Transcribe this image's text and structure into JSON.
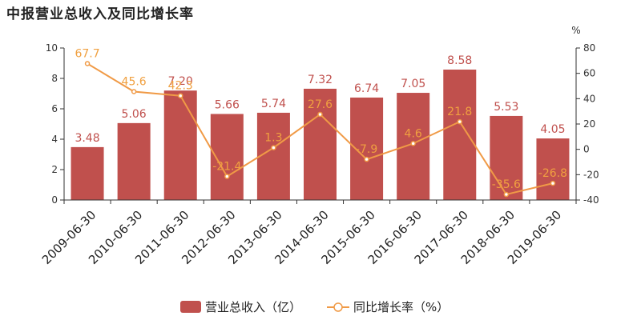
{
  "title": "中报营业总收入及同比增长率",
  "colors": {
    "bar": "#c0504d",
    "line": "#f09a46"
  },
  "chart_data": {
    "type": "bar",
    "categories": [
      "2009-06-30",
      "2010-06-30",
      "2011-06-30",
      "2012-06-30",
      "2013-06-30",
      "2014-06-30",
      "2015-06-30",
      "2016-06-30",
      "2017-06-30",
      "2018-06-30",
      "2019-06-30"
    ],
    "series": [
      {
        "name": "营业总收入（亿）",
        "type": "bar",
        "axis": "left",
        "values": [
          3.48,
          5.06,
          7.2,
          5.66,
          5.74,
          7.32,
          6.74,
          7.05,
          8.58,
          5.53,
          4.05
        ],
        "labels": [
          "3.48",
          "5.06",
          "7.20",
          "5.66",
          "5.74",
          "7.32",
          "6.74",
          "7.05",
          "8.58",
          "5.53",
          "4.05"
        ]
      },
      {
        "name": "同比增长率（%）",
        "type": "line",
        "axis": "right",
        "values": [
          67.7,
          45.6,
          42.3,
          -21.4,
          1.3,
          27.6,
          -7.9,
          4.6,
          21.8,
          -35.6,
          -26.8
        ],
        "labels": [
          "67.7",
          "45.6",
          "42.3",
          "-21.4",
          "1.3",
          "27.6",
          "-7.9",
          "4.6",
          "21.8",
          "-35.6",
          "-26.8"
        ]
      }
    ],
    "ylim": [
      0,
      10
    ],
    "yticks": [
      "0",
      "2",
      "4",
      "6",
      "8",
      "10"
    ],
    "y2lim": [
      -40,
      80
    ],
    "y2ticks": [
      "-40",
      "-20",
      "0",
      "20",
      "40",
      "60",
      "80"
    ],
    "y2unit": "%",
    "legend_position": "bottom-center",
    "grid": false
  }
}
